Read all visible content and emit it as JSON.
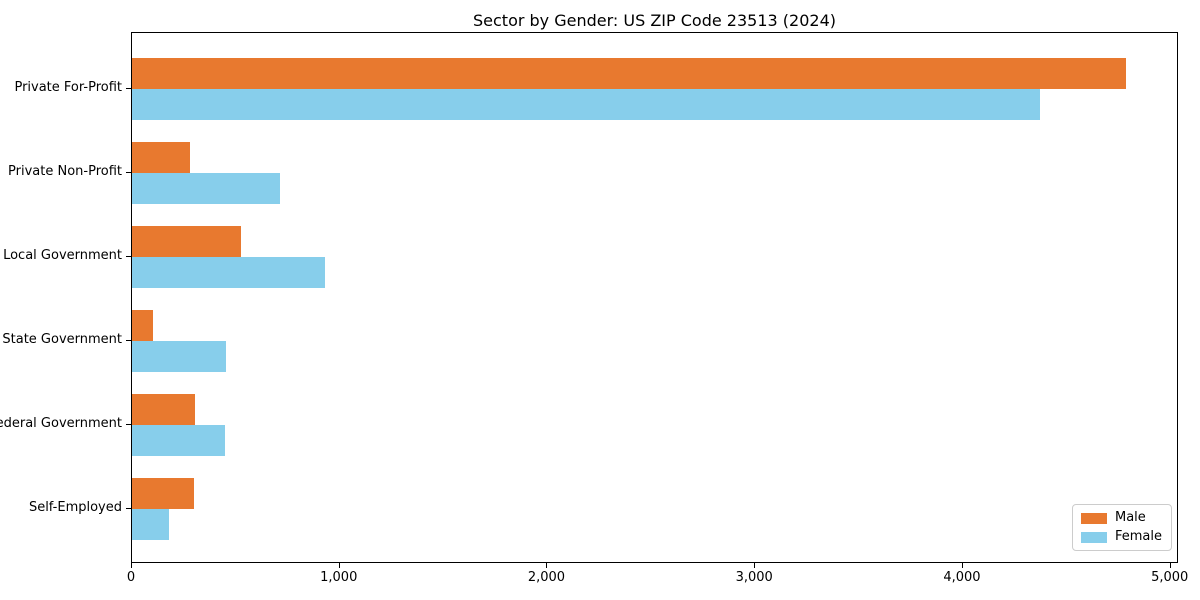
{
  "chart_data": {
    "type": "bar",
    "orientation": "horizontal",
    "title": "Sector by Gender: US ZIP Code 23513 (2024)",
    "categories": [
      "Private For-Profit",
      "Private Non-Profit",
      "Local Government",
      "State Government",
      "Federal Government",
      "Self-Employed"
    ],
    "series": [
      {
        "name": "Male",
        "color": "#E8792F",
        "values": [
          4795,
          280,
          525,
          100,
          305,
          300
        ]
      },
      {
        "name": "Female",
        "color": "#87CEEB",
        "values": [
          4380,
          715,
          930,
          455,
          450,
          180
        ]
      }
    ],
    "xlabel": "",
    "ylabel": "",
    "xlim": [
      0,
      5040
    ],
    "x_ticks": [
      {
        "value": 0,
        "label": "0"
      },
      {
        "value": 1000,
        "label": "1,000"
      },
      {
        "value": 2000,
        "label": "2,000"
      },
      {
        "value": 3000,
        "label": "3,000"
      },
      {
        "value": 4000,
        "label": "4,000"
      },
      {
        "value": 5000,
        "label": "5,000"
      }
    ],
    "grid": false,
    "legend": {
      "position": "lower right"
    }
  }
}
